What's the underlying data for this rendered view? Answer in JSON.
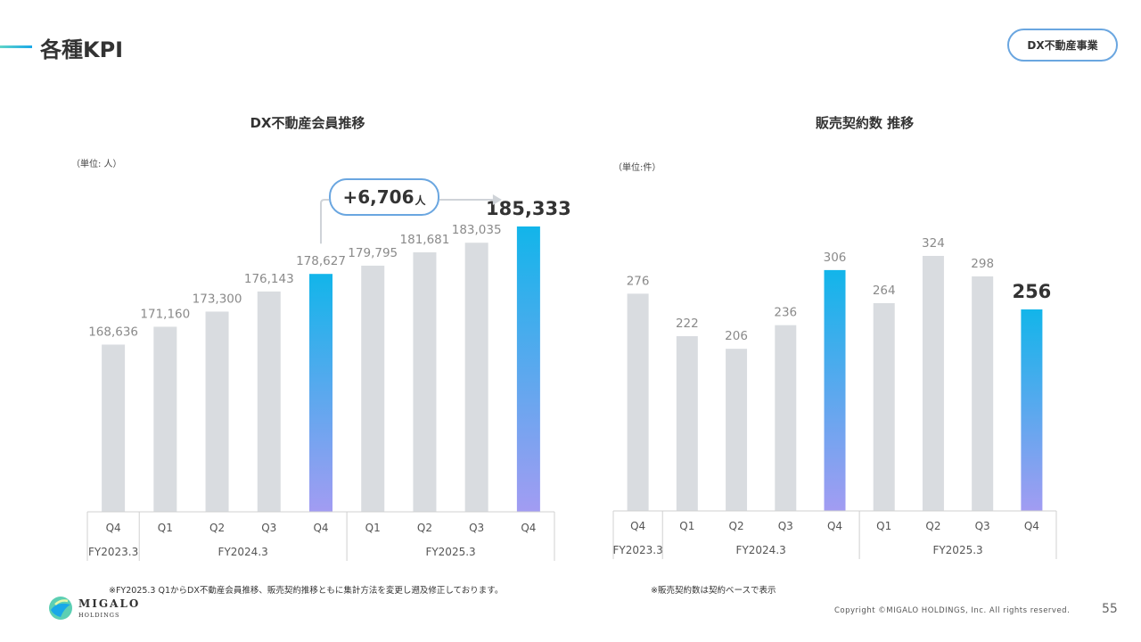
{
  "page": {
    "title": "各種KPI",
    "segment_badge": "DX不動産事業",
    "page_number": "55",
    "copyright": "Copyright ©MIGALO HOLDINGS, Inc. All rights reserved.",
    "logo_line1": "MIGALO",
    "logo_line2": "HOLDINGS",
    "note_left": "※FY2025.3 Q1からDX不動産会員推移、販売契約推移ともに集計方法を変更し遡及修正しております。",
    "note_right": "※販売契約数は契約ベースで表示"
  },
  "colors": {
    "bar_gray": "#d9dce0",
    "highlight_top": "#12b5ea",
    "highlight_bottom": "#a29cf2",
    "accent_border": "#6aa6e0"
  },
  "chart_data": [
    {
      "type": "bar",
      "title": "DX不動産会員推移",
      "unit_label": "（単位: 人）",
      "categories": [
        "Q4",
        "Q1",
        "Q2",
        "Q3",
        "Q4",
        "Q1",
        "Q2",
        "Q3",
        "Q4"
      ],
      "fiscal_years": [
        {
          "label": "FY2023.3",
          "count": 1
        },
        {
          "label": "FY2024.3",
          "count": 4
        },
        {
          "label": "FY2025.3",
          "count": 4
        }
      ],
      "values": [
        168636,
        171160,
        173300,
        176143,
        178627,
        179795,
        181681,
        183035,
        185333
      ],
      "value_labels": [
        "168,636",
        "171,160",
        "173,300",
        "176,143",
        "178,627",
        "179,795",
        "181,681",
        "183,035",
        "185,333"
      ],
      "highlighted": [
        4,
        8
      ],
      "emphasized": 8,
      "ylim": [
        145000,
        185333
      ],
      "callout": {
        "value": "+6,706",
        "unit": "人",
        "from_index": 4,
        "to_index": 8
      }
    },
    {
      "type": "bar",
      "title": "販売契約数 推移",
      "unit_label": "（単位:件）",
      "categories": [
        "Q4",
        "Q1",
        "Q2",
        "Q3",
        "Q4",
        "Q1",
        "Q2",
        "Q3",
        "Q4"
      ],
      "fiscal_years": [
        {
          "label": "FY2023.3",
          "count": 1
        },
        {
          "label": "FY2024.3",
          "count": 4
        },
        {
          "label": "FY2025.3",
          "count": 4
        }
      ],
      "values": [
        276,
        222,
        206,
        236,
        306,
        264,
        324,
        298,
        256
      ],
      "value_labels": [
        "276",
        "222",
        "206",
        "236",
        "306",
        "264",
        "324",
        "298",
        "256"
      ],
      "highlighted": [
        4,
        8
      ],
      "emphasized": 8,
      "ylim": [
        0,
        324
      ]
    }
  ]
}
